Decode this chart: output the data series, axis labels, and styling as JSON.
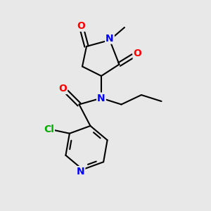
{
  "background_color": "#e8e8e8",
  "bond_color": "#000000",
  "atom_colors": {
    "O": "#ff0000",
    "N": "#0000ff",
    "Cl": "#00aa00",
    "C": "#000000"
  },
  "font_size_atom": 10,
  "figsize": [
    3.0,
    3.0
  ],
  "dpi": 100,
  "xlim": [
    0,
    10
  ],
  "ylim": [
    0,
    10
  ]
}
